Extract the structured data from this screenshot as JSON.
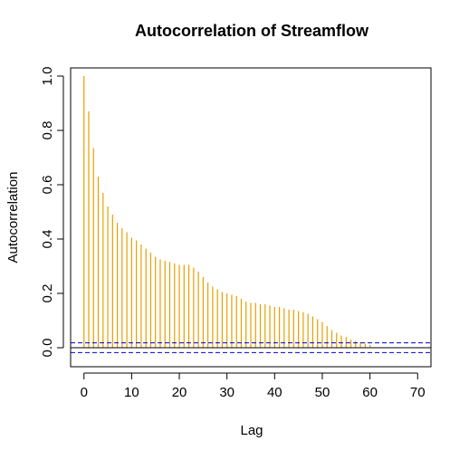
{
  "chart_data": {
    "type": "bar",
    "title": "Autocorrelation of Streamflow",
    "xlabel": "Lag",
    "ylabel": "Autocorrelation",
    "xlim": [
      -2.8,
      72.8
    ],
    "ylim": [
      -0.07,
      1.03
    ],
    "x_ticks": [
      0,
      10,
      20,
      30,
      40,
      50,
      60,
      70
    ],
    "y_ticks": [
      0.0,
      0.2,
      0.4,
      0.6,
      0.8,
      1.0
    ],
    "x_tick_labels": [
      "0",
      "10",
      "20",
      "30",
      "40",
      "50",
      "60",
      "70"
    ],
    "y_tick_labels": [
      "0.0",
      "0.2",
      "0.4",
      "0.6",
      "0.8",
      "1.0"
    ],
    "grid": false,
    "lags": [
      0,
      1,
      2,
      3,
      4,
      5,
      6,
      7,
      8,
      9,
      10,
      11,
      12,
      13,
      14,
      15,
      16,
      17,
      18,
      19,
      20,
      21,
      22,
      23,
      24,
      25,
      26,
      27,
      28,
      29,
      30,
      31,
      32,
      33,
      34,
      35,
      36,
      37,
      38,
      39,
      40,
      41,
      42,
      43,
      44,
      45,
      46,
      47,
      48,
      49,
      50,
      51,
      52,
      53,
      54,
      55,
      56,
      57,
      58,
      59,
      60
    ],
    "values": [
      1.0,
      0.87,
      0.735,
      0.63,
      0.57,
      0.52,
      0.49,
      0.46,
      0.44,
      0.425,
      0.405,
      0.395,
      0.38,
      0.365,
      0.35,
      0.335,
      0.325,
      0.32,
      0.315,
      0.31,
      0.305,
      0.305,
      0.305,
      0.295,
      0.28,
      0.26,
      0.24,
      0.225,
      0.215,
      0.205,
      0.2,
      0.195,
      0.19,
      0.18,
      0.17,
      0.165,
      0.165,
      0.16,
      0.16,
      0.155,
      0.15,
      0.15,
      0.145,
      0.14,
      0.14,
      0.135,
      0.13,
      0.125,
      0.115,
      0.105,
      0.095,
      0.08,
      0.065,
      0.055,
      0.045,
      0.04,
      0.03,
      0.025,
      0.02,
      0.015,
      0.01
    ],
    "bar_color": "#E69F00",
    "confidence_bounds": [
      0.018,
      -0.018
    ],
    "bound_color": "#0000CD",
    "zero_line_color": "#000000"
  }
}
